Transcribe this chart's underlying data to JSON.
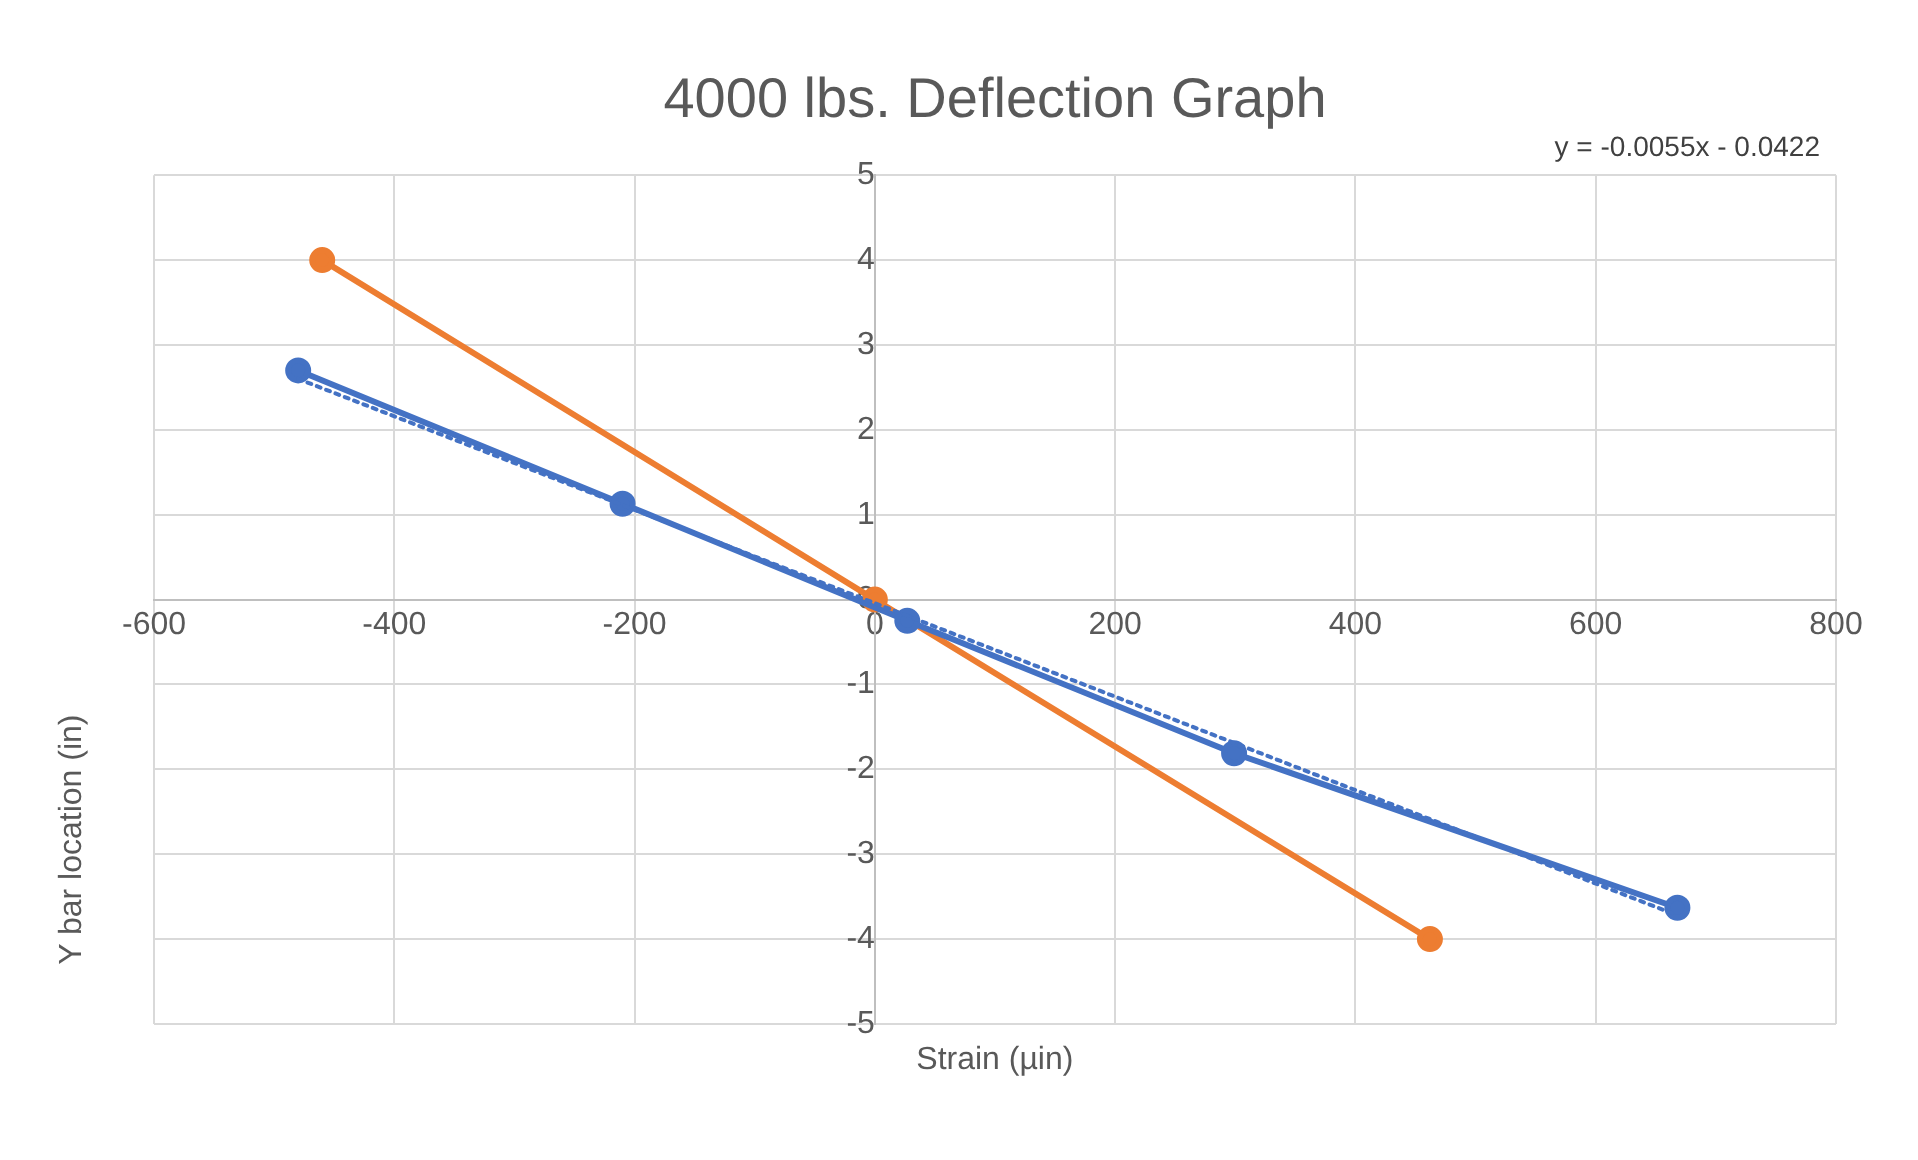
{
  "chart_data": {
    "type": "line",
    "title": "4000 lbs. Deflection Graph",
    "xlabel": "Strain (µin)",
    "ylabel": "Y bar location (in)",
    "annotations": [
      "y = -0.0055x - 0.0422"
    ],
    "xlim": [
      -600,
      800
    ],
    "xticks": [
      -600,
      -400,
      -200,
      0,
      200,
      400,
      600,
      800
    ],
    "ylim": [
      -5,
      5
    ],
    "yticks": [
      -5,
      -4,
      -3,
      -2,
      -1,
      0,
      1,
      2,
      3,
      4,
      5
    ],
    "grid": true,
    "legend": false,
    "marker": "circle",
    "series": [
      {
        "color": "#4472c4",
        "x": [
          -480,
          -210,
          27,
          299,
          668
        ],
        "values": [
          2.7,
          1.13,
          -0.25,
          -1.81,
          -3.63
        ]
      },
      {
        "color": "#ed7d31",
        "x": [
          -460,
          0,
          462
        ],
        "values": [
          4.0,
          0,
          -4.0
        ]
      },
      {
        "color": "#4472c4",
        "x": [
          -480,
          668
        ],
        "values": [
          2.6,
          -3.72
        ],
        "marker": "none",
        "line_style": "dotted"
      }
    ]
  }
}
